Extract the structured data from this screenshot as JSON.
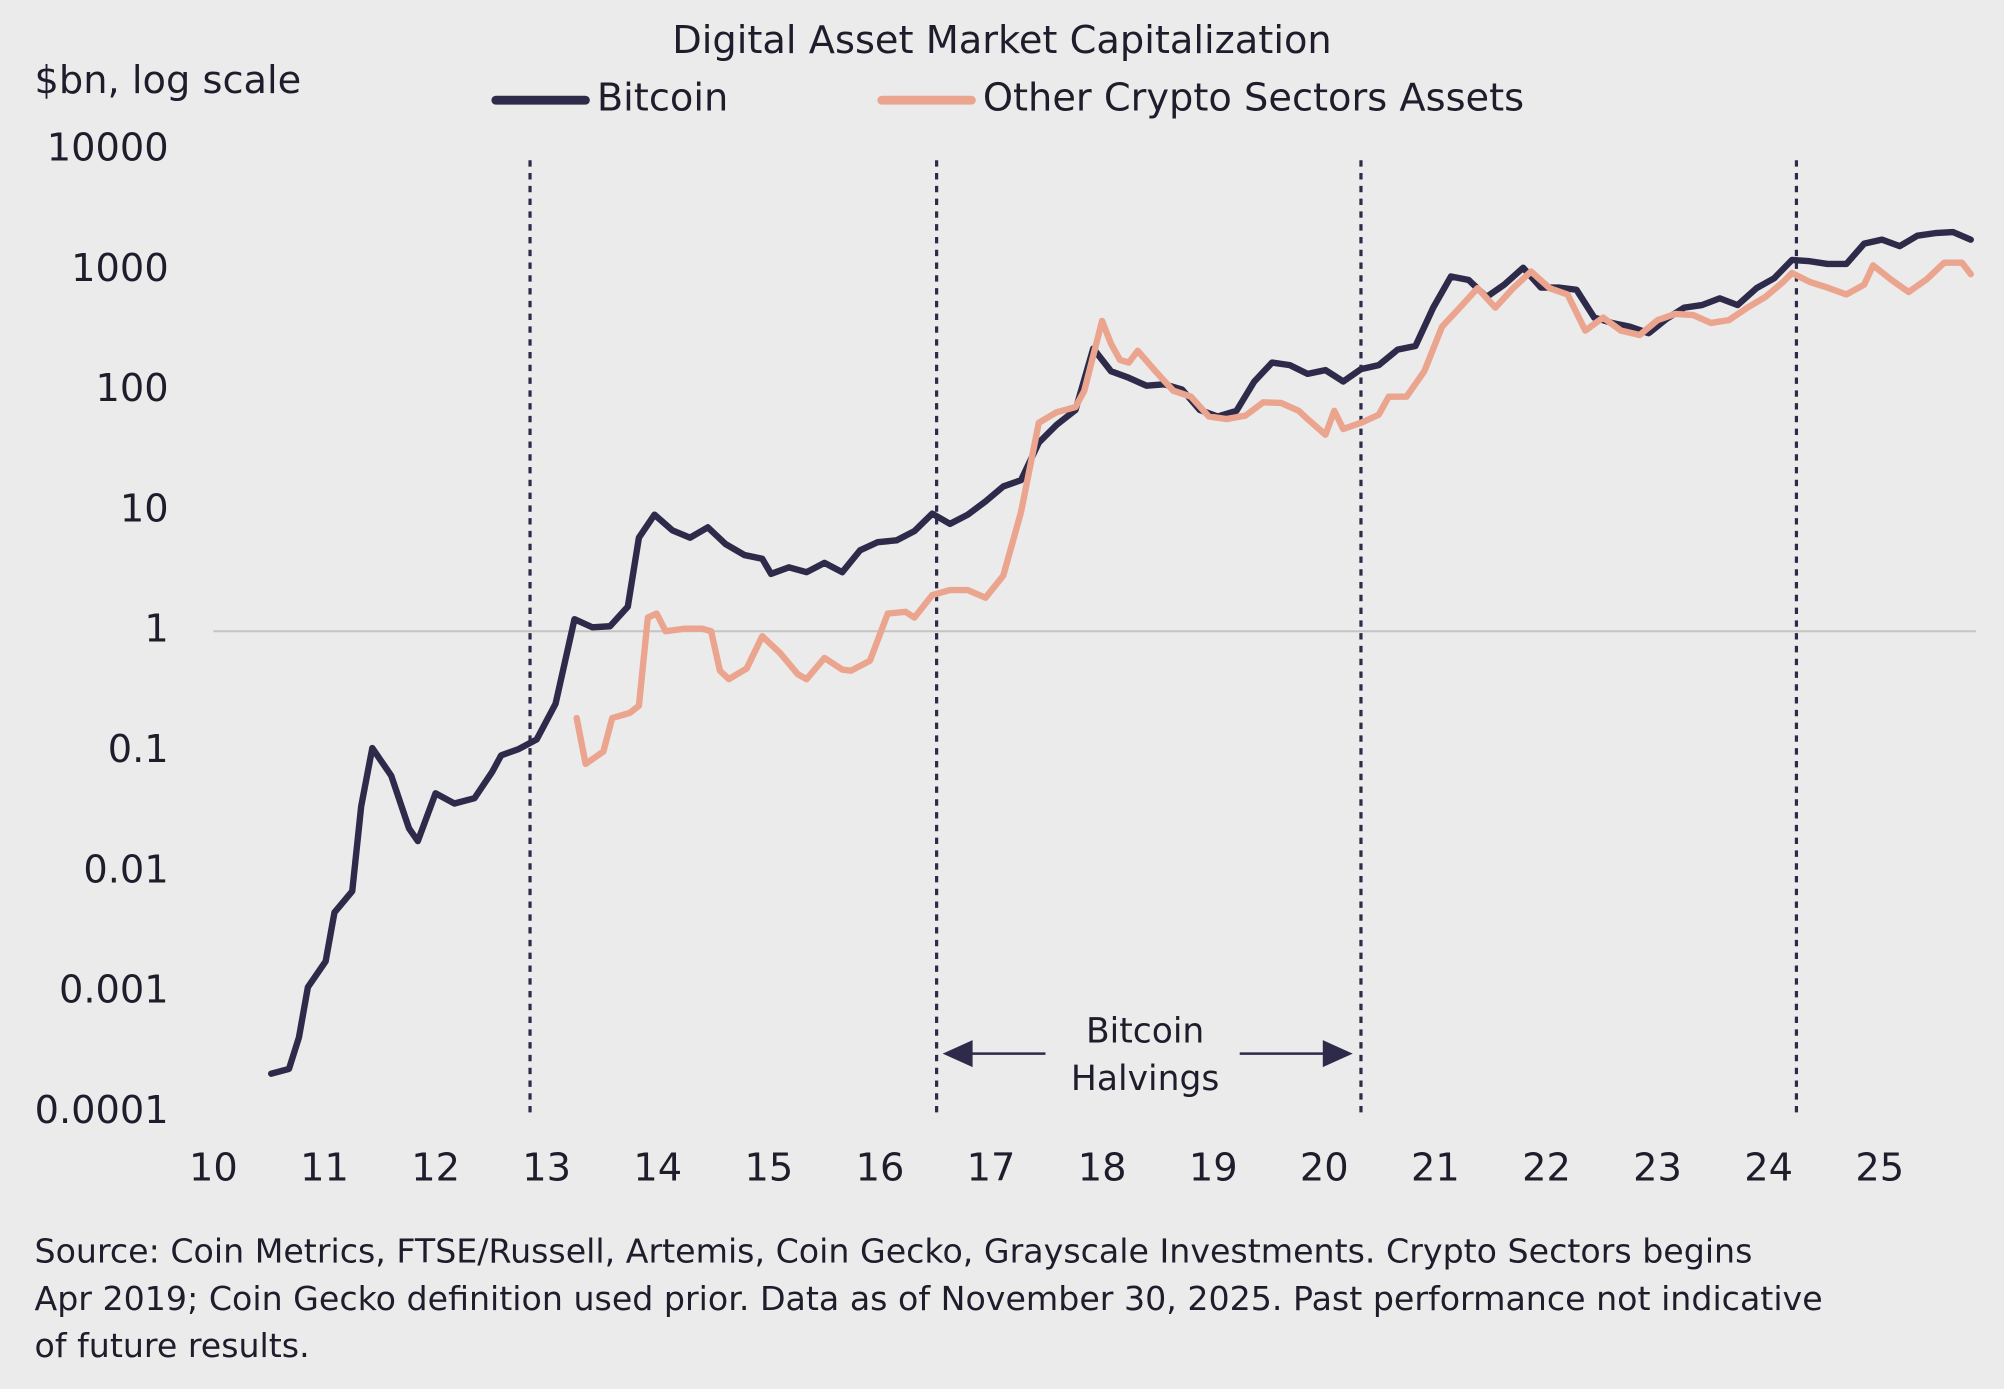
{
  "chart_data": {
    "type": "line",
    "title": "Digital Asset Market Capitalization",
    "y_label": "$bn, log scale",
    "log_scale": true,
    "reference_line": 1,
    "legend": "top",
    "xlim": [
      10,
      25.9
    ],
    "xticks": [
      10,
      11,
      12,
      13,
      14,
      15,
      16,
      17,
      18,
      19,
      20,
      21,
      22,
      23,
      24,
      25
    ],
    "ylim": [
      0.0001,
      10000
    ],
    "yticks": [
      0.0001,
      0.001,
      0.01,
      0.1,
      1,
      10,
      100,
      1000,
      10000
    ],
    "halvings": [
      12.85,
      16.51,
      20.33,
      24.25
    ],
    "annotation": [
      "Bitcoin",
      "Halvings"
    ],
    "note": [
      "Source: Coin Metrics, FTSE/Russell, Artemis, Coin Gecko, Grayscale Investments. Crypto Sectors begins",
      "Apr 2019; Coin Gecko definition used prior. Data as of November 30, 2025. Past performance not indicative",
      "of future results."
    ],
    "series": [
      {
        "name": "Bitcoin",
        "color": "#2e2a4a",
        "x": [
          10.52,
          10.68,
          10.77,
          10.85,
          11.01,
          11.09,
          11.25,
          11.33,
          11.43,
          11.6,
          11.76,
          11.84,
          12.0,
          12.17,
          12.35,
          12.51,
          12.59,
          12.75,
          12.91,
          13.08,
          13.25,
          13.41,
          13.57,
          13.73,
          13.83,
          13.97,
          14.13,
          14.29,
          14.45,
          14.61,
          14.78,
          14.94,
          15.02,
          15.18,
          15.34,
          15.5,
          15.66,
          15.82,
          15.98,
          16.15,
          16.31,
          16.47,
          16.63,
          16.79,
          16.95,
          17.11,
          17.27,
          17.43,
          17.59,
          17.76,
          17.92,
          18.08,
          18.24,
          18.4,
          18.56,
          18.72,
          18.88,
          19.04,
          19.21,
          19.37,
          19.53,
          19.69,
          19.85,
          20.01,
          20.17,
          20.33,
          20.49,
          20.66,
          20.82,
          20.98,
          21.14,
          21.3,
          21.46,
          21.62,
          21.79,
          21.95,
          22.11,
          22.27,
          22.43,
          22.59,
          22.75,
          22.92,
          23.08,
          23.24,
          23.4,
          23.56,
          23.72,
          23.89,
          24.05,
          24.21,
          24.37,
          24.53,
          24.7,
          24.86,
          25.02,
          25.18,
          25.34,
          25.5,
          25.66,
          25.82
        ],
        "values": [
          0.00021,
          0.00023,
          0.00042,
          0.0011,
          0.0018,
          0.0046,
          0.0069,
          0.035,
          0.107,
          0.063,
          0.023,
          0.018,
          0.045,
          0.037,
          0.041,
          0.068,
          0.093,
          0.105,
          0.126,
          0.25,
          1.26,
          1.08,
          1.1,
          1.6,
          6.0,
          9.3,
          6.9,
          6.0,
          7.3,
          5.3,
          4.3,
          4.0,
          3.0,
          3.4,
          3.1,
          3.7,
          3.1,
          4.7,
          5.5,
          5.7,
          6.8,
          9.5,
          7.8,
          9.3,
          12,
          16,
          18,
          37,
          52,
          69,
          224,
          145,
          128,
          110,
          113,
          102,
          69,
          61,
          68,
          119,
          171,
          163,
          138,
          148,
          119,
          151,
          163,
          219,
          235,
          490,
          890,
          830,
          600,
          760,
          1050,
          720,
          720,
          690,
          405,
          365,
          340,
          300,
          395,
          490,
          515,
          585,
          515,
          710,
          860,
          1220,
          1190,
          1130,
          1130,
          1670,
          1800,
          1590,
          1940,
          2040,
          2080,
          1800
        ]
      },
      {
        "name": "Other Crypto Sectors Assets",
        "color": "#eba58f",
        "x": [
          13.27,
          13.35,
          13.51,
          13.59,
          13.75,
          13.83,
          13.91,
          13.99,
          14.07,
          14.24,
          14.4,
          14.48,
          14.56,
          14.64,
          14.8,
          14.94,
          15.1,
          15.26,
          15.34,
          15.5,
          15.66,
          15.74,
          15.91,
          16.07,
          16.23,
          16.31,
          16.47,
          16.63,
          16.79,
          16.95,
          17.11,
          17.27,
          17.43,
          17.59,
          17.76,
          17.84,
          18.0,
          18.08,
          18.16,
          18.24,
          18.32,
          18.48,
          18.64,
          18.8,
          18.96,
          19.12,
          19.29,
          19.45,
          19.61,
          19.77,
          19.85,
          20.01,
          20.09,
          20.17,
          20.33,
          20.49,
          20.58,
          20.74,
          20.9,
          21.06,
          21.22,
          21.38,
          21.54,
          21.7,
          21.86,
          22.03,
          22.19,
          22.35,
          22.51,
          22.67,
          22.84,
          23.0,
          23.16,
          23.32,
          23.48,
          23.64,
          23.81,
          23.97,
          24.13,
          24.21,
          24.37,
          24.53,
          24.7,
          24.86,
          24.94,
          25.1,
          25.26,
          25.42,
          25.58,
          25.74,
          25.82
        ],
        "values": [
          0.19,
          0.079,
          0.1,
          0.19,
          0.21,
          0.24,
          1.3,
          1.4,
          1.0,
          1.05,
          1.05,
          1.0,
          0.47,
          0.4,
          0.49,
          0.91,
          0.66,
          0.44,
          0.4,
          0.6,
          0.48,
          0.47,
          0.57,
          1.4,
          1.45,
          1.3,
          2.0,
          2.2,
          2.2,
          1.9,
          2.9,
          9.8,
          54,
          66,
          73,
          100,
          380,
          245,
          180,
          171,
          214,
          145,
          100,
          89,
          61,
          58,
          62,
          80,
          79,
          68,
          58,
          43,
          68,
          48,
          54,
          63,
          89,
          89,
          145,
          340,
          490,
          710,
          490,
          710,
          980,
          710,
          630,
          315,
          405,
          315,
          290,
          385,
          435,
          425,
          365,
          385,
          490,
          600,
          800,
          950,
          800,
          720,
          630,
          760,
          1100,
          840,
          660,
          840,
          1160,
          1160,
          930
        ]
      }
    ]
  }
}
